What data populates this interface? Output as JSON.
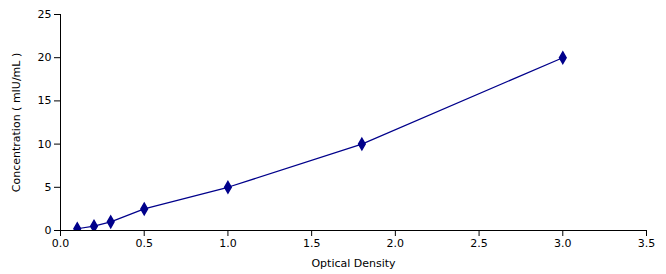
{
  "chart_data": {
    "type": "line",
    "xlabel": "Optical Density",
    "ylabel": "Concentration ( mIU/mL )",
    "x": [
      0.1,
      0.2,
      0.3,
      0.5,
      1.0,
      1.8,
      3.0
    ],
    "values": [
      0.2,
      0.5,
      1.0,
      2.5,
      5.0,
      10.0,
      20.0
    ],
    "color": "#00008B",
    "marker": "diamond",
    "line_style": "solid",
    "xlim": [
      0,
      3.5
    ],
    "ylim": [
      0,
      25
    ],
    "xticks": [
      {
        "value": 0,
        "label": "0.0"
      },
      0.5,
      {
        "value": 1.0,
        "label": "1.0"
      },
      1.5,
      {
        "value": 2.0,
        "label": "2.0"
      },
      2.5,
      {
        "value": 3.0,
        "label": "3.0"
      },
      3.5
    ],
    "yticks": [
      0,
      5,
      10,
      15,
      20,
      25
    ],
    "grid": false
  }
}
